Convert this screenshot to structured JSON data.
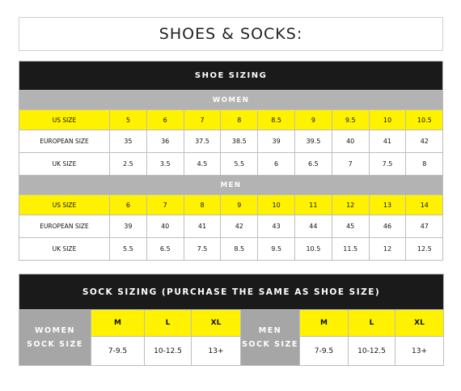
{
  "page_title": "SHOES & SOCKS:",
  "shoe_sizing": {
    "title": "SHOE SIZING",
    "women": {
      "heading": "WOMEN",
      "rows": [
        {
          "label": "US SIZE",
          "values": [
            "5",
            "6",
            "7",
            "8",
            "8.5",
            "9",
            "9.5",
            "10",
            "10.5"
          ]
        },
        {
          "label": "EUROPEAN SIZE",
          "values": [
            "35",
            "36",
            "37.5",
            "38.5",
            "39",
            "39.5",
            "40",
            "41",
            "42"
          ]
        },
        {
          "label": "UK SIZE",
          "values": [
            "2.5",
            "3.5",
            "4.5",
            "5.5",
            "6",
            "6.5",
            "7",
            "7.5",
            "8"
          ]
        }
      ]
    },
    "men": {
      "heading": "MEN",
      "rows": [
        {
          "label": "US SIZE",
          "values": [
            "6",
            "7",
            "8",
            "9",
            "10",
            "11",
            "12",
            "13",
            "14"
          ]
        },
        {
          "label": "EUROPEAN SIZE",
          "values": [
            "39",
            "40",
            "41",
            "42",
            "43",
            "44",
            "45",
            "46",
            "47"
          ]
        },
        {
          "label": "UK SIZE",
          "values": [
            "5.5",
            "6.5",
            "7.5",
            "8.5",
            "9.5",
            "10.5",
            "11.5",
            "12",
            "12.5"
          ]
        }
      ]
    }
  },
  "sock_sizing": {
    "title": "SOCK SIZING (PURCHASE THE SAME AS SHOE SIZE)",
    "women": {
      "label_line1": "WOMEN",
      "label_line2": "SOCK SIZE",
      "sizes": [
        "M",
        "L",
        "XL"
      ],
      "ranges": [
        "7-9.5",
        "10-12.5",
        "13+"
      ]
    },
    "men": {
      "label_line1": "MEN",
      "label_line2": "SOCK SIZE",
      "sizes": [
        "M",
        "L",
        "XL"
      ],
      "ranges": [
        "7-9.5",
        "10-12.5",
        "13+"
      ]
    }
  },
  "colors": {
    "black": "#1a1a1a",
    "grey": "#b3b3b3",
    "yellow": "#fff200"
  }
}
